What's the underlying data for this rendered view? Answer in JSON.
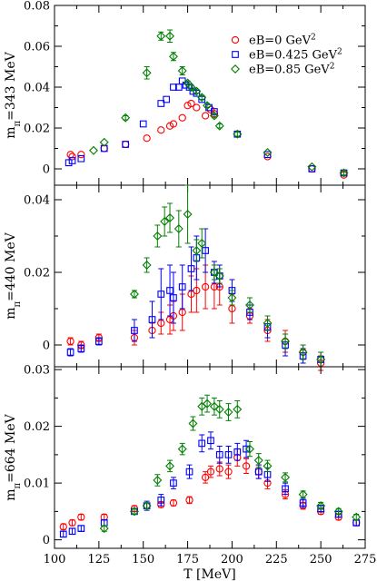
{
  "chart_data": [
    {
      "type": "scatter",
      "ylabel": "m_π=343 MeV",
      "ylabel_main": "m",
      "ylabel_sub": "π",
      "ylabel_rest": "=343 MeV",
      "xlim": [
        100,
        275
      ],
      "ylim": [
        -0.008,
        0.08
      ],
      "yticks": [
        0,
        0.02,
        0.04,
        0.06,
        0.08
      ],
      "ytick_labels": [
        "0",
        "0.02",
        "0.04",
        "0.06",
        "0.08"
      ],
      "legend": [
        {
          "name_main": "eB=0 GeV",
          "sup": "2",
          "color": "#ff0000",
          "marker": "circle"
        },
        {
          "name_main": "eB=0.425 GeV",
          "sup": "2",
          "color": "#0000ff",
          "marker": "square"
        },
        {
          "name_main": "eB=0.85 GeV",
          "sup": "2",
          "color": "#008000",
          "marker": "diamond"
        }
      ],
      "series": [
        {
          "name": "eB=0 GeV^2",
          "color": "#ff0000",
          "marker": "circle",
          "points": [
            [
              109,
              0.007,
              0
            ],
            [
              110,
              0.006,
              0
            ],
            [
              115,
              0.007,
              0
            ],
            [
              128,
              0.01,
              0
            ],
            [
              140,
              0.012,
              0
            ],
            [
              152,
              0.015,
              0
            ],
            [
              160,
              0.019,
              0
            ],
            [
              165,
              0.021,
              0
            ],
            [
              167,
              0.022,
              0
            ],
            [
              172,
              0.025,
              0
            ],
            [
              175,
              0.031,
              0
            ],
            [
              177,
              0.032,
              0
            ],
            [
              180,
              0.03,
              0
            ],
            [
              185,
              0.026,
              0
            ],
            [
              188,
              0.029,
              0
            ],
            [
              190,
              0.027,
              0
            ],
            [
              203,
              0.017,
              0
            ],
            [
              220,
              0.006,
              0
            ],
            [
              245,
              0.0,
              0
            ],
            [
              263,
              -0.003,
              0
            ]
          ]
        },
        {
          "name": "eB=0.425 GeV^2",
          "color": "#0000ff",
          "marker": "square",
          "points": [
            [
              108,
              0.003,
              0
            ],
            [
              110,
              0.004,
              0
            ],
            [
              115,
              0.005,
              0
            ],
            [
              128,
              0.01,
              0
            ],
            [
              140,
              0.012,
              0
            ],
            [
              150,
              0.022,
              0
            ],
            [
              160,
              0.032,
              0
            ],
            [
              163,
              0.034,
              0
            ],
            [
              167,
              0.04,
              0
            ],
            [
              170,
              0.04,
              0
            ],
            [
              172,
              0.043,
              0
            ],
            [
              174,
              0.041,
              0
            ],
            [
              176,
              0.04,
              0
            ],
            [
              178,
              0.038,
              0
            ],
            [
              180,
              0.037,
              0
            ],
            [
              183,
              0.034,
              0
            ],
            [
              187,
              0.03,
              0
            ],
            [
              190,
              0.028,
              0
            ],
            [
              203,
              0.017,
              0
            ],
            [
              220,
              0.007,
              0
            ],
            [
              245,
              0.0,
              0
            ],
            [
              263,
              -0.002,
              0
            ]
          ]
        },
        {
          "name": "eB=0.85 GeV^2",
          "color": "#008000",
          "marker": "diamond",
          "points": [
            [
              122,
              0.009,
              0
            ],
            [
              128,
              0.013,
              0
            ],
            [
              140,
              0.025,
              0.001
            ],
            [
              152,
              0.047,
              0.003
            ],
            [
              160,
              0.065,
              0.002
            ],
            [
              165,
              0.065,
              0.003
            ],
            [
              167,
              0.055,
              0.002
            ],
            [
              172,
              0.048,
              0.002
            ],
            [
              175,
              0.042,
              0.001
            ],
            [
              177,
              0.04,
              0.001
            ],
            [
              180,
              0.038,
              0.001
            ],
            [
              183,
              0.035,
              0.001
            ],
            [
              186,
              0.031,
              0.001
            ],
            [
              190,
              0.026,
              0.001
            ],
            [
              193,
              0.021,
              0.001
            ],
            [
              203,
              0.017,
              0.001
            ],
            [
              220,
              0.008,
              0
            ],
            [
              245,
              0.001,
              0
            ],
            [
              263,
              -0.002,
              0.001
            ]
          ]
        }
      ]
    },
    {
      "type": "scatter",
      "ylabel": "m_π=440 MeV",
      "ylabel_main": "m",
      "ylabel_sub": "π",
      "ylabel_rest": "=440 MeV",
      "xlim": [
        100,
        275
      ],
      "ylim": [
        -0.006,
        0.044
      ],
      "yticks": [
        0,
        0.02,
        0.04
      ],
      "ytick_labels": [
        "0",
        "0.02",
        "0.04"
      ],
      "series": [
        {
          "name": "eB=0 GeV^2",
          "color": "#ff0000",
          "marker": "circle",
          "points": [
            [
              109,
              0.001,
              0.001
            ],
            [
              115,
              0.0,
              0.001
            ],
            [
              125,
              0.002,
              0.001
            ],
            [
              145,
              0.002,
              0.002
            ],
            [
              155,
              0.004,
              0.002
            ],
            [
              160,
              0.006,
              0.003
            ],
            [
              165,
              0.007,
              0.004
            ],
            [
              167,
              0.008,
              0.004
            ],
            [
              172,
              0.009,
              0.005
            ],
            [
              177,
              0.014,
              0.005
            ],
            [
              180,
              0.015,
              0.006
            ],
            [
              185,
              0.016,
              0.006
            ],
            [
              190,
              0.016,
              0.006
            ],
            [
              193,
              0.016,
              0.005
            ],
            [
              200,
              0.01,
              0.004
            ],
            [
              210,
              0.008,
              0.002
            ],
            [
              220,
              0.004,
              0.003
            ],
            [
              230,
              0.001,
              0.003
            ],
            [
              240,
              -0.002,
              0.002
            ],
            [
              250,
              -0.005,
              0.002
            ]
          ]
        },
        {
          "name": "eB=0.425 GeV^2",
          "color": "#0000ff",
          "marker": "square",
          "points": [
            [
              109,
              -0.002,
              0.001
            ],
            [
              115,
              -0.001,
              0.001
            ],
            [
              125,
              0.001,
              0.001
            ],
            [
              145,
              0.004,
              0.003
            ],
            [
              155,
              0.007,
              0.005
            ],
            [
              160,
              0.014,
              0.007
            ],
            [
              165,
              0.015,
              0.007
            ],
            [
              167,
              0.013,
              0.007
            ],
            [
              172,
              0.016,
              0.006
            ],
            [
              177,
              0.021,
              0.006
            ],
            [
              180,
              0.024,
              0.006
            ],
            [
              185,
              0.026,
              0.006
            ],
            [
              190,
              0.02,
              0.003
            ],
            [
              193,
              0.019,
              0.003
            ],
            [
              200,
              0.015,
              0.003
            ],
            [
              210,
              0.009,
              0.002
            ],
            [
              220,
              0.005,
              0.003
            ],
            [
              230,
              0.0,
              0.003
            ],
            [
              240,
              -0.003,
              0.002
            ],
            [
              250,
              -0.004,
              0.002
            ]
          ]
        },
        {
          "name": "eB=0.85 GeV^2",
          "color": "#008000",
          "marker": "diamond",
          "points": [
            [
              145,
              0.014,
              0.001
            ],
            [
              152,
              0.022,
              0.002
            ],
            [
              158,
              0.03,
              0.003
            ],
            [
              162,
              0.034,
              0.004
            ],
            [
              165,
              0.035,
              0.004
            ],
            [
              170,
              0.032,
              0.005
            ],
            [
              175,
              0.036,
              0.008
            ],
            [
              180,
              0.026,
              0.003
            ],
            [
              183,
              0.028,
              0.004
            ],
            [
              190,
              0.02,
              0.002
            ],
            [
              193,
              0.019,
              0.002
            ],
            [
              200,
              0.013,
              0.002
            ],
            [
              210,
              0.011,
              0.002
            ],
            [
              220,
              0.006,
              0.002
            ],
            [
              230,
              0.001,
              0.002
            ],
            [
              240,
              -0.002,
              0.002
            ],
            [
              250,
              -0.004,
              0.002
            ]
          ]
        }
      ]
    },
    {
      "type": "scatter",
      "ylabel": "m_π=664 MeV",
      "ylabel_main": "m",
      "ylabel_sub": "π",
      "ylabel_rest": "=664 MeV",
      "xlabel": "T [MeV]",
      "xlim": [
        100,
        275
      ],
      "ylim": [
        -0.0015,
        0.0305
      ],
      "yticks": [
        0,
        0.01,
        0.02,
        0.03
      ],
      "ytick_labels": [
        "0",
        "0.01",
        "0.02",
        "0.03"
      ],
      "xticks": [
        100,
        125,
        150,
        175,
        200,
        225,
        250,
        275
      ],
      "xtick_labels": [
        "100",
        "125",
        "150",
        "175",
        "200",
        "225",
        "250",
        "275"
      ],
      "series": [
        {
          "name": "eB=0 GeV^2",
          "color": "#ff0000",
          "marker": "circle",
          "points": [
            [
              105,
              0.0023,
              0.0005
            ],
            [
              110,
              0.003,
              0.0005
            ],
            [
              115,
              0.004,
              0.0005
            ],
            [
              128,
              0.004,
              0.0005
            ],
            [
              145,
              0.0055,
              0.0005
            ],
            [
              152,
              0.006,
              0.0005
            ],
            [
              160,
              0.0062,
              0.0005
            ],
            [
              167,
              0.0065,
              0.0005
            ],
            [
              176,
              0.007,
              0.0006
            ],
            [
              185,
              0.011,
              0.001
            ],
            [
              188,
              0.012,
              0.001
            ],
            [
              193,
              0.0125,
              0.0012
            ],
            [
              198,
              0.012,
              0.0012
            ],
            [
              203,
              0.0145,
              0.0015
            ],
            [
              208,
              0.013,
              0.0013
            ],
            [
              215,
              0.012,
              0.0012
            ],
            [
              220,
              0.01,
              0.001
            ],
            [
              230,
              0.008,
              0.0008
            ],
            [
              240,
              0.006,
              0.0006
            ],
            [
              250,
              0.005,
              0.0005
            ],
            [
              260,
              0.004,
              0.0005
            ],
            [
              270,
              0.003,
              0.0005
            ]
          ]
        },
        {
          "name": "eB=0.425 GeV^2",
          "color": "#0000ff",
          "marker": "square",
          "points": [
            [
              105,
              0.001,
              0.0005
            ],
            [
              110,
              0.0015,
              0.0005
            ],
            [
              115,
              0.002,
              0.0005
            ],
            [
              128,
              0.003,
              0.0005
            ],
            [
              145,
              0.005,
              0.0005
            ],
            [
              152,
              0.006,
              0.0008
            ],
            [
              160,
              0.007,
              0.001
            ],
            [
              167,
              0.01,
              0.001
            ],
            [
              176,
              0.012,
              0.0012
            ],
            [
              183,
              0.017,
              0.0015
            ],
            [
              188,
              0.0175,
              0.0015
            ],
            [
              193,
              0.015,
              0.0015
            ],
            [
              198,
              0.015,
              0.0015
            ],
            [
              203,
              0.0155,
              0.0015
            ],
            [
              208,
              0.016,
              0.0015
            ],
            [
              215,
              0.012,
              0.0012
            ],
            [
              220,
              0.0115,
              0.0012
            ],
            [
              230,
              0.009,
              0.001
            ],
            [
              240,
              0.0065,
              0.0008
            ],
            [
              250,
              0.0055,
              0.0006
            ],
            [
              260,
              0.0045,
              0.0005
            ],
            [
              270,
              0.003,
              0.0005
            ]
          ]
        },
        {
          "name": "eB=0.85 GeV^2",
          "color": "#008000",
          "marker": "diamond",
          "points": [
            [
              128,
              0.002,
              0.0005
            ],
            [
              145,
              0.005,
              0.0005
            ],
            [
              152,
              0.006,
              0.0005
            ],
            [
              158,
              0.0105,
              0.001
            ],
            [
              165,
              0.013,
              0.001
            ],
            [
              172,
              0.016,
              0.001
            ],
            [
              178,
              0.0205,
              0.0012
            ],
            [
              183,
              0.0235,
              0.0015
            ],
            [
              186,
              0.024,
              0.0015
            ],
            [
              190,
              0.0235,
              0.0015
            ],
            [
              193,
              0.023,
              0.0015
            ],
            [
              198,
              0.0225,
              0.0015
            ],
            [
              203,
              0.023,
              0.0015
            ],
            [
              210,
              0.016,
              0.0013
            ],
            [
              215,
              0.014,
              0.0012
            ],
            [
              220,
              0.013,
              0.001
            ],
            [
              230,
              0.011,
              0.0008
            ],
            [
              240,
              0.008,
              0.0006
            ],
            [
              250,
              0.006,
              0.0006
            ],
            [
              260,
              0.005,
              0.0005
            ],
            [
              270,
              0.004,
              0.0005
            ]
          ]
        }
      ]
    }
  ]
}
